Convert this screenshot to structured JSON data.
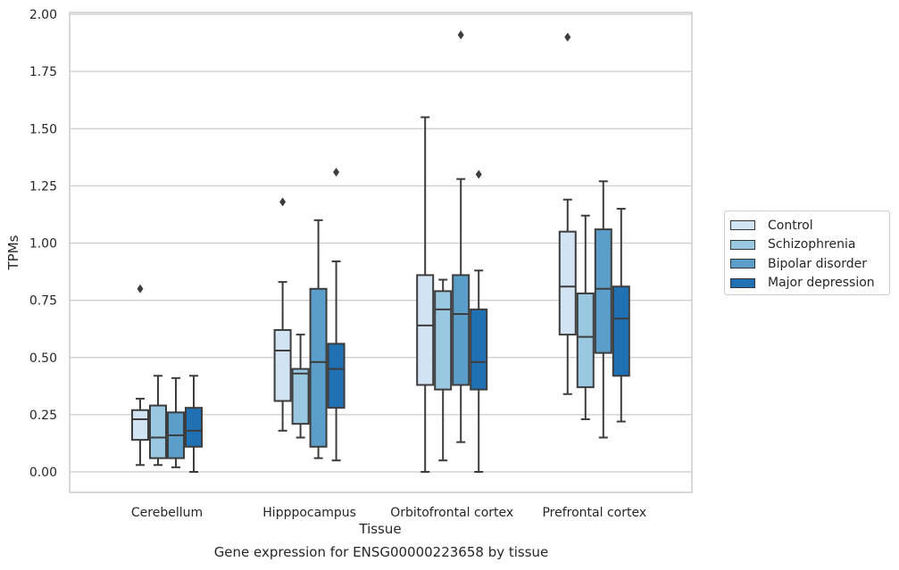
{
  "chart_data": {
    "type": "box",
    "xlabel": "Tissue",
    "ylabel": "TPMs",
    "ylim": [
      -0.09,
      2.01
    ],
    "yticks": [
      "0.00",
      "0.25",
      "0.50",
      "0.75",
      "1.00",
      "1.25",
      "1.50",
      "1.75",
      "2.00"
    ],
    "ytick_values": [
      0,
      0.25,
      0.5,
      0.75,
      1.0,
      1.25,
      1.5,
      1.75,
      2.0
    ],
    "categories": [
      "Cerebellum",
      "Hipppocampus",
      "Orbitofrontal cortex",
      "Prefrontal cortex"
    ],
    "grid": "horizontal",
    "legend_position": "right",
    "series": [
      {
        "name": "Control",
        "color": "#d2e3f3",
        "boxes": [
          {
            "whisker_low": 0.03,
            "q1": 0.14,
            "median": 0.23,
            "q3": 0.27,
            "whisker_high": 0.32,
            "outliers": [
              0.8
            ]
          },
          {
            "whisker_low": 0.18,
            "q1": 0.31,
            "median": 0.53,
            "q3": 0.62,
            "whisker_high": 0.83,
            "outliers": [
              1.18
            ]
          },
          {
            "whisker_low": 0.0,
            "q1": 0.38,
            "median": 0.64,
            "q3": 0.86,
            "whisker_high": 1.55,
            "outliers": []
          },
          {
            "whisker_low": 0.34,
            "q1": 0.6,
            "median": 0.81,
            "q3": 1.05,
            "whisker_high": 1.19,
            "outliers": [
              1.9
            ]
          }
        ]
      },
      {
        "name": "Schizophrenia",
        "color": "#9ac8e0",
        "boxes": [
          {
            "whisker_low": 0.03,
            "q1": 0.06,
            "median": 0.15,
            "q3": 0.29,
            "whisker_high": 0.42,
            "outliers": []
          },
          {
            "whisker_low": 0.15,
            "q1": 0.21,
            "median": 0.43,
            "q3": 0.45,
            "whisker_high": 0.6,
            "outliers": []
          },
          {
            "whisker_low": 0.05,
            "q1": 0.36,
            "median": 0.71,
            "q3": 0.79,
            "whisker_high": 0.84,
            "outliers": []
          },
          {
            "whisker_low": 0.23,
            "q1": 0.37,
            "median": 0.59,
            "q3": 0.78,
            "whisker_high": 1.12,
            "outliers": []
          }
        ]
      },
      {
        "name": "Bipolar disorder",
        "color": "#5b9ec9",
        "boxes": [
          {
            "whisker_low": 0.02,
            "q1": 0.06,
            "median": 0.16,
            "q3": 0.26,
            "whisker_high": 0.41,
            "outliers": []
          },
          {
            "whisker_low": 0.06,
            "q1": 0.11,
            "median": 0.48,
            "q3": 0.8,
            "whisker_high": 1.1,
            "outliers": []
          },
          {
            "whisker_low": 0.13,
            "q1": 0.38,
            "median": 0.69,
            "q3": 0.86,
            "whisker_high": 1.28,
            "outliers": [
              1.91
            ]
          },
          {
            "whisker_low": 0.15,
            "q1": 0.52,
            "median": 0.8,
            "q3": 1.06,
            "whisker_high": 1.27,
            "outliers": []
          }
        ]
      },
      {
        "name": "Major depression",
        "color": "#2070b4",
        "boxes": [
          {
            "whisker_low": 0.0,
            "q1": 0.11,
            "median": 0.18,
            "q3": 0.28,
            "whisker_high": 0.42,
            "outliers": []
          },
          {
            "whisker_low": 0.05,
            "q1": 0.28,
            "median": 0.45,
            "q3": 0.56,
            "whisker_high": 0.92,
            "outliers": [
              1.31
            ]
          },
          {
            "whisker_low": 0.0,
            "q1": 0.36,
            "median": 0.48,
            "q3": 0.71,
            "whisker_high": 0.88,
            "outliers": [
              1.3
            ]
          },
          {
            "whisker_low": 0.22,
            "q1": 0.42,
            "median": 0.67,
            "q3": 0.81,
            "whisker_high": 1.15,
            "outliers": []
          }
        ]
      }
    ],
    "caption": "Gene expression for ENSG00000223658 by tissue"
  }
}
